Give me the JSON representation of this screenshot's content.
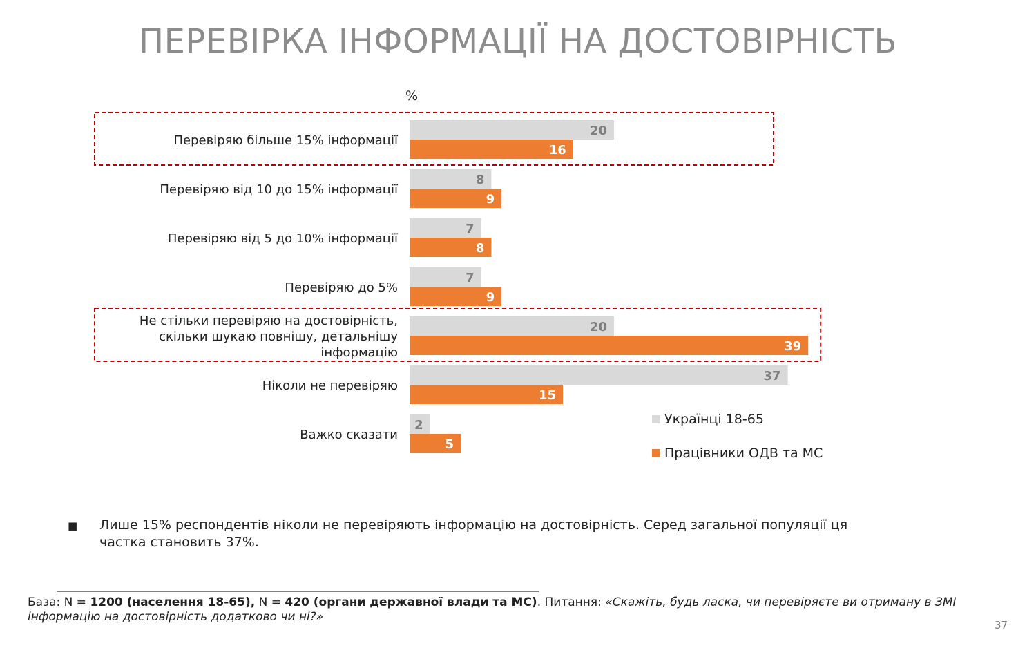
{
  "slide": {
    "title": "ПЕРЕВІРКА ІНФОРМАЦІЇ НА ДОСТОВІРНІСТЬ",
    "page_number": "37"
  },
  "chart_data": {
    "type": "bar",
    "orientation": "horizontal",
    "unit_label": "%",
    "categories": [
      "Перевіряю більше 15% інформації",
      "Перевіряю від 10 до 15% інформації",
      "Перевіряю від 5 до 10% інформації",
      "Перевіряю до 5%",
      "Не стільки перевіряю на достовірність, скільки шукаю повнішу, детальнішу інформацію",
      "Ніколи не перевіряю",
      "Важко сказати"
    ],
    "category_lines": [
      [
        "Перевіряю більше 15% інформації"
      ],
      [
        "Перевіряю від 10 до 15% інформації"
      ],
      [
        "Перевіряю від 5 до 10% інформації"
      ],
      [
        "Перевіряю до 5%"
      ],
      [
        "Не стільки перевіряю на достовірність,",
        "скільки шукаю повнішу, детальнішу",
        "інформацію"
      ],
      [
        "Ніколи не перевіряю"
      ],
      [
        "Важко сказати"
      ]
    ],
    "series": [
      {
        "name": "Українці 18-65",
        "color": "#d9d9d9",
        "label_color": "#7f7f7f",
        "values": [
          20,
          8,
          7,
          7,
          20,
          37,
          2
        ]
      },
      {
        "name": "Працівники ОДВ та МС",
        "color": "#ed7d31",
        "label_color": "#ffffff",
        "values": [
          16,
          9,
          8,
          9,
          39,
          15,
          5
        ]
      }
    ],
    "highlighted_categories": [
      0,
      4
    ],
    "highlight_color": "#c00000",
    "legend_position": "bottom-right",
    "grid": false
  },
  "finding": {
    "bullet": "■",
    "text": "Лише 15% респондентів ніколи не перевіряють інформацію на достовірність. Серед загальної популяції ця частка становить 37%."
  },
  "footnote": {
    "base_prefix": "База: N = ",
    "base_pop": "1200 (населення 18-65),",
    "base_mid": " N = ",
    "base_org": "420 (органи державної влади та МС)",
    "question_prefix": ". Питання: ",
    "question": "«Скажіть, будь ласка, чи перевіряєте ви отриману в ЗМІ інформацію на достовірність додатково чи ні?»"
  }
}
